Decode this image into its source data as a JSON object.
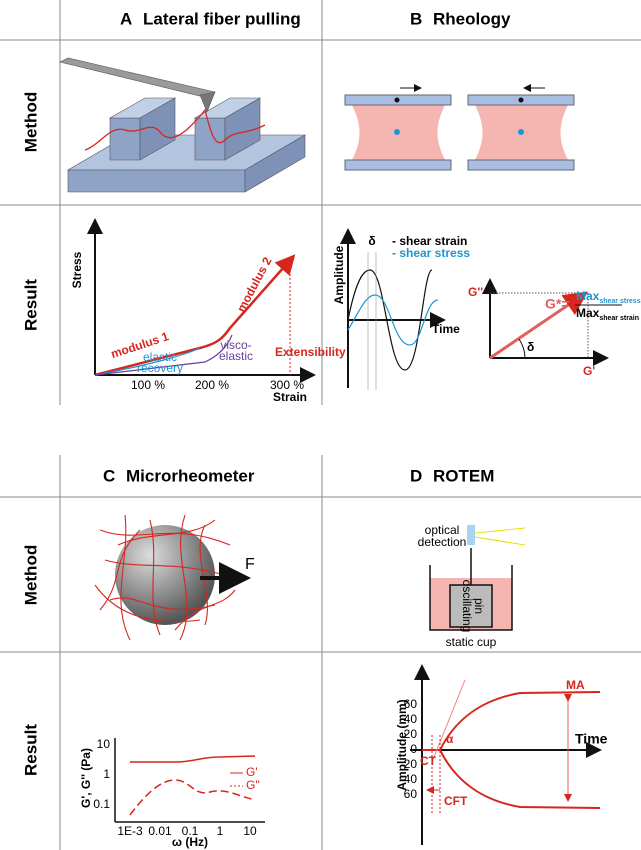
{
  "tables": [
    {
      "row_labels": [
        "Method",
        "Result"
      ],
      "panels": [
        {
          "letter": "A",
          "title": "Lateral fiber pulling",
          "result": {
            "y_label": "Stress",
            "x_label": "Strain",
            "x_ticks": [
              "100 %",
              "200 %",
              "300 %"
            ],
            "modulus_1": "modulus 1",
            "modulus_2": "modulus 2",
            "elastic_recovery": [
              "elastic",
              "recovery"
            ],
            "visco_elastic": [
              "visco-",
              "elastic"
            ],
            "extensibility": "Extensibility"
          }
        },
        {
          "letter": "B",
          "title": "Rheology",
          "result": {
            "y_label": "Amplitude",
            "x_label": "Time",
            "delta": "δ",
            "legend": [
              "- shear strain",
              "- shear stress"
            ],
            "g_star": "G*=",
            "numerator": {
              "text": "Max",
              "sub": "shear stress"
            },
            "denominator": {
              "text": "Max",
              "sub": "shear strain"
            },
            "g_double_prime": "G''",
            "g_prime": "G'",
            "angle": "δ"
          }
        }
      ]
    },
    {
      "row_labels": [
        "Method",
        "Result"
      ],
      "panels": [
        {
          "letter": "C",
          "title": "Microrheometer",
          "method": {
            "force": "F"
          },
          "result": {
            "y_label": "G', G'' (Pa)",
            "x_label": "ω (Hz)",
            "y_ticks": [
              "10",
              "1",
              "0.1"
            ],
            "x_ticks": [
              "1E-3",
              "0.01",
              "0.1",
              "1",
              "10"
            ],
            "legend": [
              "G'",
              "G''"
            ]
          }
        },
        {
          "letter": "D",
          "title": "ROTEM",
          "method": {
            "optical_detection": [
              "optical",
              "detection"
            ],
            "pin": [
              "oscillating",
              "pin"
            ],
            "cup": "static cup"
          },
          "result": {
            "y_label": "Amplitude (mm)",
            "x_label": "Time",
            "y_ticks": [
              "60",
              "40",
              "20",
              "0",
              "20",
              "40",
              "60"
            ],
            "ma": "MA",
            "alpha": "α",
            "ct": "CT",
            "cft": "CFT"
          }
        }
      ]
    }
  ]
}
